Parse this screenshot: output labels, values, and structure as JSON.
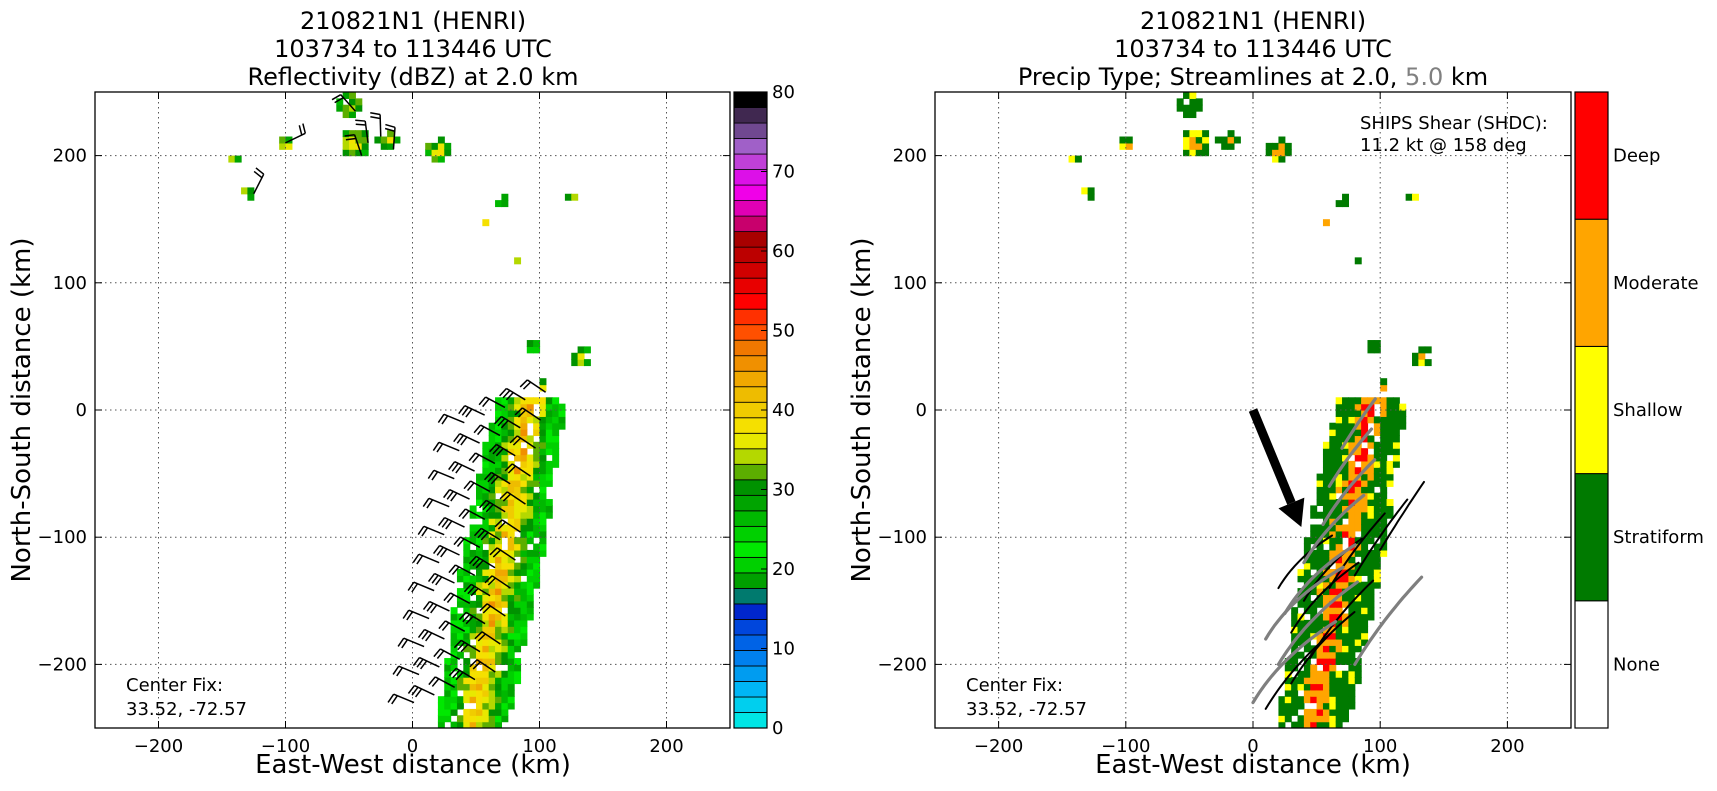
{
  "chart_data": [
    {
      "type": "heatmap",
      "title_lines": [
        "210821N1 (HENRI)",
        "103734 to 113446 UTC",
        "Reflectivity (dBZ) at 2.0 km"
      ],
      "xlabel": "East-West distance (km)",
      "ylabel": "North-South distance (km)",
      "xlim": [
        -250,
        250
      ],
      "ylim": [
        -250,
        250
      ],
      "xticks": [
        -200,
        -100,
        0,
        100,
        200
      ],
      "yticks": [
        -200,
        -100,
        0,
        100,
        200
      ],
      "grid": true,
      "annotation": {
        "line1": "Center Fix:",
        "line2": "33.52, -72.57"
      },
      "colorbar": {
        "ticks": [
          0,
          10,
          20,
          30,
          40,
          50,
          60,
          70,
          80
        ],
        "range": [
          0,
          80
        ],
        "colors": [
          "#00e5e5",
          "#00cfee",
          "#00b6f5",
          "#009cf0",
          "#0080ee",
          "#0063e6",
          "#0046dc",
          "#0026cc",
          "#007a6e",
          "#00a000",
          "#00d000",
          "#00e800",
          "#00d000",
          "#00b800",
          "#00a400",
          "#009200",
          "#5cae00",
          "#b4d800",
          "#e8e800",
          "#f5e000",
          "#f0cc00",
          "#eebc00",
          "#f0a800",
          "#f09000",
          "#f07800",
          "#ff5000",
          "#ff3000",
          "#ff0000",
          "#e80000",
          "#d00000",
          "#bc0000",
          "#a80000",
          "#c8006c",
          "#e000b4",
          "#f000e8",
          "#dc10e8",
          "#c040d8",
          "#a060c8",
          "#704890",
          "#402850",
          "#000000"
        ]
      }
    },
    {
      "type": "heatmap",
      "title_lines": [
        "210821N1 (HENRI)",
        "103734 to 113446 UTC"
      ],
      "title_line3": {
        "prefix": "Precip Type; Streamlines at 2.0, ",
        "gray": "5.0",
        "suffix": " km"
      },
      "xlabel": "East-West distance (km)",
      "ylabel": "North-South distance (km)",
      "xlim": [
        -250,
        250
      ],
      "ylim": [
        -250,
        250
      ],
      "xticks": [
        -200,
        -100,
        0,
        100,
        200
      ],
      "yticks": [
        -200,
        -100,
        0,
        100,
        200
      ],
      "grid": true,
      "annotation": {
        "line1": "Center Fix:",
        "line2": "33.52, -72.57"
      },
      "shear": {
        "line1": "SHIPS Shear (SHDC):",
        "line2": "11.2 kt @ 158 deg",
        "start": [
          0,
          0
        ],
        "end": [
          38,
          -92
        ]
      },
      "categories": [
        "None",
        "Stratiform",
        "Shallow",
        "Moderate",
        "Deep"
      ],
      "category_colors": [
        "#ffffff",
        "#007a00",
        "#ffff00",
        "#ffa500",
        "#ff0000"
      ]
    }
  ]
}
